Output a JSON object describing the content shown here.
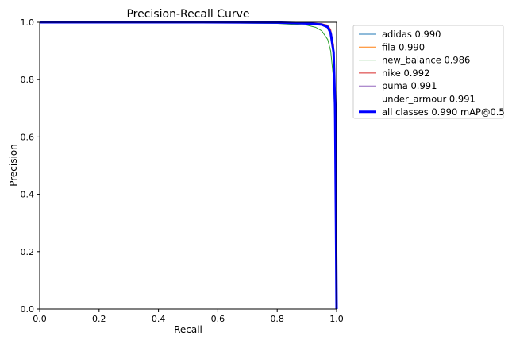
{
  "chart_data": {
    "type": "line",
    "title": "Precision-Recall Curve",
    "xlabel": "Recall",
    "ylabel": "Precision",
    "xlim": [
      0,
      1
    ],
    "ylim": [
      0,
      1
    ],
    "xticks": [
      "0.0",
      "0.2",
      "0.4",
      "0.6",
      "0.8",
      "1.0"
    ],
    "yticks": [
      "0.0",
      "0.2",
      "0.4",
      "0.6",
      "0.8",
      "1.0"
    ],
    "grid": false,
    "legend_position": "outside upper right",
    "series": [
      {
        "name": "adidas 0.990",
        "color": "#1f77b4",
        "points": [
          [
            0,
            1
          ],
          [
            0.5,
            1
          ],
          [
            0.8,
            0.999
          ],
          [
            0.9,
            0.997
          ],
          [
            0.95,
            0.993
          ],
          [
            0.97,
            0.985
          ],
          [
            0.98,
            0.965
          ],
          [
            0.99,
            0.9
          ],
          [
            0.995,
            0.7
          ],
          [
            0.998,
            0.3
          ],
          [
            1.0,
            0
          ]
        ]
      },
      {
        "name": "fila 0.990",
        "color": "#ff7f0e",
        "points": [
          [
            0,
            1
          ],
          [
            0.5,
            1
          ],
          [
            0.8,
            0.999
          ],
          [
            0.9,
            0.997
          ],
          [
            0.95,
            0.993
          ],
          [
            0.97,
            0.986
          ],
          [
            0.98,
            0.967
          ],
          [
            0.99,
            0.905
          ],
          [
            0.995,
            0.72
          ],
          [
            0.998,
            0.32
          ],
          [
            1.0,
            0
          ]
        ]
      },
      {
        "name": "new_balance 0.986",
        "color": "#2ca02c",
        "points": [
          [
            0,
            1
          ],
          [
            0.5,
            0.999
          ],
          [
            0.8,
            0.996
          ],
          [
            0.9,
            0.99
          ],
          [
            0.93,
            0.982
          ],
          [
            0.95,
            0.97
          ],
          [
            0.97,
            0.94
          ],
          [
            0.98,
            0.9
          ],
          [
            0.99,
            0.8
          ],
          [
            0.995,
            0.6
          ],
          [
            0.998,
            0.25
          ],
          [
            1.0,
            0
          ]
        ]
      },
      {
        "name": "nike 0.992",
        "color": "#d62728",
        "points": [
          [
            0,
            1
          ],
          [
            0.5,
            1
          ],
          [
            0.8,
            1
          ],
          [
            0.9,
            0.998
          ],
          [
            0.95,
            0.995
          ],
          [
            0.97,
            0.99
          ],
          [
            0.98,
            0.975
          ],
          [
            0.99,
            0.92
          ],
          [
            0.995,
            0.75
          ],
          [
            0.998,
            0.35
          ],
          [
            1.0,
            0
          ]
        ]
      },
      {
        "name": "puma 0.991",
        "color": "#9467bd",
        "points": [
          [
            0,
            1
          ],
          [
            0.5,
            1
          ],
          [
            0.8,
            0.999
          ],
          [
            0.9,
            0.998
          ],
          [
            0.95,
            0.994
          ],
          [
            0.97,
            0.988
          ],
          [
            0.98,
            0.97
          ],
          [
            0.99,
            0.91
          ],
          [
            0.995,
            0.73
          ],
          [
            0.998,
            0.33
          ],
          [
            1.0,
            0
          ]
        ]
      },
      {
        "name": "under_armour 0.991",
        "color": "#8c564b",
        "points": [
          [
            0,
            1
          ],
          [
            0.5,
            1
          ],
          [
            0.8,
            0.999
          ],
          [
            0.9,
            0.998
          ],
          [
            0.95,
            0.994
          ],
          [
            0.97,
            0.987
          ],
          [
            0.98,
            0.969
          ],
          [
            0.99,
            0.91
          ],
          [
            0.995,
            0.73
          ],
          [
            0.998,
            0.33
          ],
          [
            1.0,
            0
          ]
        ]
      },
      {
        "name": "all classes 0.990 mAP@0.5",
        "color": "#0000ff",
        "bold": true,
        "points": [
          [
            0,
            1
          ],
          [
            0.5,
            1
          ],
          [
            0.8,
            0.999
          ],
          [
            0.9,
            0.996
          ],
          [
            0.95,
            0.992
          ],
          [
            0.97,
            0.983
          ],
          [
            0.98,
            0.962
          ],
          [
            0.99,
            0.895
          ],
          [
            0.995,
            0.7
          ],
          [
            0.998,
            0.3
          ],
          [
            1.0,
            0
          ]
        ]
      }
    ]
  }
}
